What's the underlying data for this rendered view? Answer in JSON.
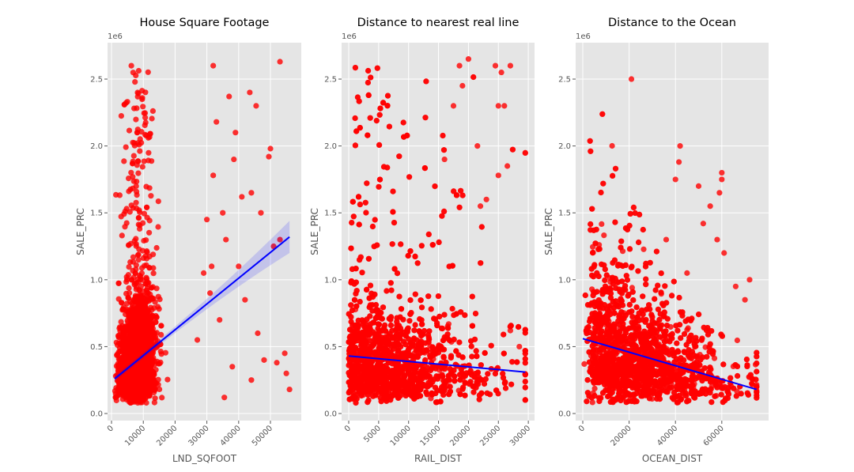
{
  "chart_data": [
    {
      "type": "scatter",
      "title": "House Square Footage",
      "xlabel": "LND_SQFOOT",
      "ylabel": "SALE_PRC",
      "y_offset_label": "1e6",
      "xlim": [
        -1250,
        59700
      ],
      "ylim": [
        -0.053,
        2.772
      ],
      "xticks": [
        0,
        10000,
        20000,
        30000,
        40000,
        50000
      ],
      "xtick_labels": [
        "0",
        "10000",
        "20000",
        "30000",
        "40000",
        "50000"
      ],
      "yticks": [
        0,
        0.5,
        1.0,
        1.5,
        2.0,
        2.5
      ],
      "ytick_labels": [
        "0.0",
        "0.5",
        "1.0",
        "1.5",
        "2.0",
        "2.5"
      ],
      "grid": true,
      "point_color": "#ff0000",
      "line_color": "#0000ff",
      "regression": {
        "x": [
          1000,
          56000
        ],
        "y": [
          0.26,
          1.32
        ]
      },
      "confidence_band": true,
      "cloud": {
        "x_center": 8000,
        "x_spread": 4500,
        "x_min": 1000,
        "x_max": 25000,
        "y_min": 0.08,
        "n": 2600
      },
      "outliers": [
        [
          53000,
          2.63
        ],
        [
          32000,
          2.6
        ],
        [
          45500,
          2.3
        ],
        [
          37000,
          2.37
        ],
        [
          39000,
          2.1
        ],
        [
          43500,
          2.4
        ],
        [
          50000,
          1.98
        ],
        [
          49500,
          1.92
        ],
        [
          32000,
          1.78
        ],
        [
          35500,
          0.12
        ],
        [
          56000,
          0.18
        ],
        [
          55000,
          0.3
        ],
        [
          38500,
          1.9
        ],
        [
          41000,
          1.62
        ],
        [
          44000,
          1.65
        ],
        [
          47000,
          1.5
        ],
        [
          30000,
          1.45
        ],
        [
          33000,
          2.18
        ],
        [
          36000,
          1.3
        ],
        [
          40000,
          1.1
        ],
        [
          42000,
          0.85
        ],
        [
          46000,
          0.6
        ],
        [
          48000,
          0.4
        ],
        [
          52000,
          0.38
        ],
        [
          54500,
          0.45
        ],
        [
          51000,
          1.25
        ],
        [
          31000,
          0.9
        ],
        [
          34000,
          0.7
        ],
        [
          29000,
          1.05
        ],
        [
          27000,
          0.55
        ],
        [
          38000,
          0.35
        ],
        [
          44000,
          0.25
        ],
        [
          53000,
          1.3
        ],
        [
          35000,
          1.5
        ],
        [
          31500,
          1.1
        ]
      ]
    },
    {
      "type": "scatter",
      "title": "Distance to nearest real line",
      "xlabel": "RAIL_DIST",
      "ylabel": "SALE_PRC",
      "y_offset_label": "1e6",
      "xlim": [
        -1190,
        31040
      ],
      "ylim": [
        -0.053,
        2.772
      ],
      "xticks": [
        0,
        5000,
        10000,
        15000,
        20000,
        25000,
        30000
      ],
      "xtick_labels": [
        "0",
        "5000",
        "10000",
        "15000",
        "20000",
        "25000",
        "30000"
      ],
      "yticks": [
        0,
        0.5,
        1.0,
        1.5,
        2.0,
        2.5
      ],
      "ytick_labels": [
        "0.0",
        "0.5",
        "1.0",
        "1.5",
        "2.0",
        "2.5"
      ],
      "grid": true,
      "point_color": "#ff0000",
      "line_color": "#0000ff",
      "regression": {
        "x": [
          0,
          29500
        ],
        "y": [
          0.43,
          0.31
        ]
      },
      "confidence_band": false,
      "cloud": {
        "x_center": 7000,
        "x_spread": 6500,
        "x_min": 0,
        "x_max": 29500,
        "y_min": 0.08,
        "n": 2600
      },
      "outliers": [
        [
          24500,
          2.6
        ],
        [
          26000,
          2.3
        ],
        [
          25500,
          2.55
        ],
        [
          27000,
          2.6
        ],
        [
          26500,
          1.85
        ],
        [
          25000,
          1.78
        ],
        [
          28500,
          0.5
        ],
        [
          27000,
          0.62
        ],
        [
          25000,
          2.3
        ],
        [
          20000,
          2.65
        ],
        [
          18500,
          2.6
        ],
        [
          19000,
          2.45
        ],
        [
          22000,
          1.55
        ],
        [
          23000,
          1.6
        ],
        [
          17500,
          2.3
        ],
        [
          21500,
          2.0
        ],
        [
          16000,
          1.9
        ]
      ]
    },
    {
      "type": "scatter",
      "title": "Distance to the Ocean",
      "xlabel": "OCEAN_DIST",
      "ylabel": "SALE_PRC",
      "y_offset_label": "1e6",
      "xlim": [
        -3070,
        80200
      ],
      "ylim": [
        -0.053,
        2.772
      ],
      "xticks": [
        0,
        20000,
        40000,
        60000
      ],
      "xtick_labels": [
        "0",
        "20000",
        "40000",
        "60000"
      ],
      "yticks": [
        0,
        0.5,
        1.0,
        1.5,
        2.0,
        2.5
      ],
      "ytick_labels": [
        "0.0",
        "0.5",
        "1.0",
        "1.5",
        "2.0",
        "2.5"
      ],
      "grid": true,
      "point_color": "#ff0000",
      "line_color": "#0000ff",
      "regression": {
        "x": [
          0,
          75000
        ],
        "y": [
          0.56,
          0.18
        ]
      },
      "confidence_band": false,
      "cloud": {
        "x_center": 25000,
        "x_spread": 20000,
        "x_min": 0,
        "x_max": 75000,
        "y_min": 0.08,
        "n": 2600
      },
      "outliers": [
        [
          42000,
          2.0
        ],
        [
          41500,
          1.88
        ],
        [
          50000,
          1.7
        ],
        [
          60000,
          1.8
        ],
        [
          60000,
          1.75
        ],
        [
          70000,
          0.85
        ],
        [
          72000,
          1.0
        ],
        [
          21000,
          2.5
        ],
        [
          40000,
          1.75
        ],
        [
          59000,
          1.65
        ],
        [
          55000,
          1.55
        ],
        [
          52000,
          1.42
        ],
        [
          58000,
          1.3
        ],
        [
          61000,
          1.2
        ],
        [
          36000,
          1.3
        ],
        [
          45000,
          1.05
        ],
        [
          66000,
          0.95
        ]
      ]
    }
  ]
}
